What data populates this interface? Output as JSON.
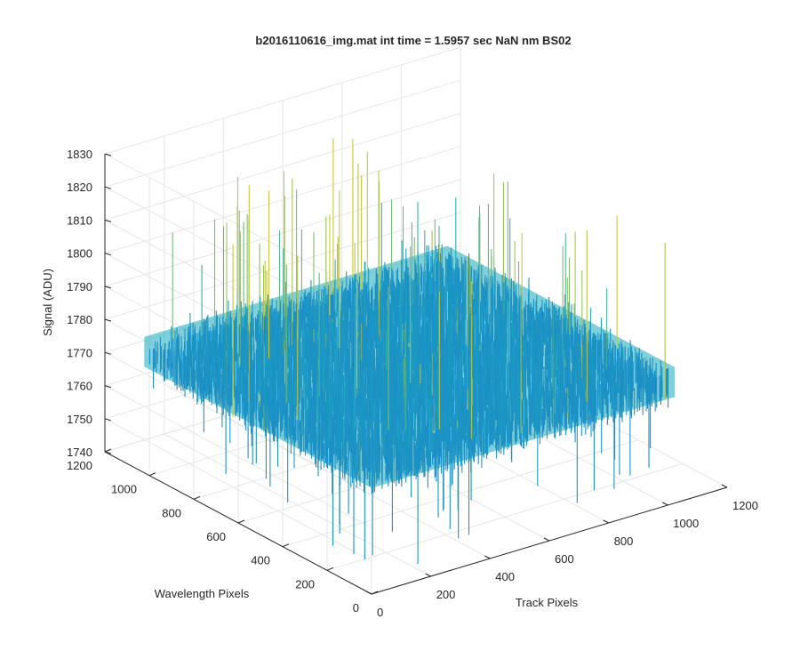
{
  "chart_data": {
    "type": "surface3d",
    "title": "b2016110616_img.mat int time = 1.5957 sec  NaN nm BS02",
    "xlabel": "Track Pixels",
    "ylabel": "Wavelength Pixels",
    "zlabel": "Signal (ADU)",
    "x_ticks": [
      0,
      200,
      400,
      600,
      800,
      1000,
      1200
    ],
    "y_ticks": [
      0,
      200,
      400,
      600,
      800,
      1000,
      1200
    ],
    "z_ticks": [
      1740,
      1750,
      1760,
      1770,
      1780,
      1790,
      1800,
      1810,
      1820,
      1830
    ],
    "xlim": [
      0,
      1200
    ],
    "ylim": [
      0,
      1200
    ],
    "zlim": [
      1740,
      1830
    ],
    "x_data_range": [
      1,
      1024
    ],
    "y_data_range": [
      1,
      1024
    ],
    "signal_mean": 1775,
    "signal_range": [
      1742,
      1826
    ],
    "grid": true,
    "colormap": "parula",
    "colors": {
      "surface_low": "#1f7fc8",
      "surface_mid": "#18aac0",
      "surface_high": "#c8c840",
      "axis": "#262626",
      "grid": "#e6e6e6"
    }
  }
}
